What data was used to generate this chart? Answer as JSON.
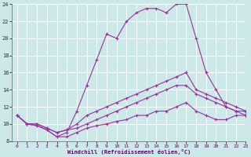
{
  "xlabel": "Windchill (Refroidissement éolien,°C)",
  "bg_color": "#cce8e8",
  "grid_color": "#aacccc",
  "line_color": "#993399",
  "x": [
    0,
    1,
    2,
    3,
    4,
    5,
    6,
    7,
    8,
    9,
    10,
    11,
    12,
    13,
    14,
    15,
    16,
    17,
    18,
    19,
    20,
    21,
    22,
    23
  ],
  "line1": [
    11.0,
    10.0,
    9.8,
    9.3,
    8.5,
    9.0,
    11.5,
    14.5,
    17.5,
    20.5,
    20.0,
    22.0,
    23.0,
    23.5,
    23.5,
    23.0,
    24.0,
    24.0,
    20.0,
    16.0,
    14.0,
    12.0,
    11.5,
    11.0
  ],
  "line2": [
    11.0,
    10.0,
    10.0,
    9.5,
    9.0,
    9.3,
    10.0,
    11.0,
    11.5,
    12.0,
    12.5,
    13.0,
    13.5,
    14.0,
    14.5,
    15.0,
    15.5,
    16.0,
    14.0,
    13.5,
    13.0,
    12.5,
    12.0,
    11.5
  ],
  "line3": [
    11.0,
    10.0,
    10.0,
    9.5,
    9.0,
    9.3,
    9.5,
    10.0,
    10.5,
    11.0,
    11.5,
    12.0,
    12.5,
    13.0,
    13.5,
    14.0,
    14.5,
    14.5,
    13.5,
    13.0,
    12.5,
    12.0,
    11.5,
    11.5
  ],
  "line4": [
    11.0,
    10.0,
    9.8,
    9.3,
    8.5,
    8.5,
    9.0,
    9.5,
    9.8,
    10.0,
    10.3,
    10.5,
    11.0,
    11.0,
    11.5,
    11.5,
    12.0,
    12.5,
    11.5,
    11.0,
    10.5,
    10.5,
    11.0,
    11.0
  ],
  "ylim": [
    8,
    24
  ],
  "xlim": [
    -0.5,
    23
  ],
  "yticks": [
    8,
    10,
    12,
    14,
    16,
    18,
    20,
    22,
    24
  ],
  "xticks": [
    0,
    1,
    2,
    3,
    4,
    5,
    6,
    7,
    8,
    9,
    10,
    11,
    12,
    13,
    14,
    15,
    16,
    17,
    18,
    19,
    20,
    21,
    22,
    23
  ]
}
